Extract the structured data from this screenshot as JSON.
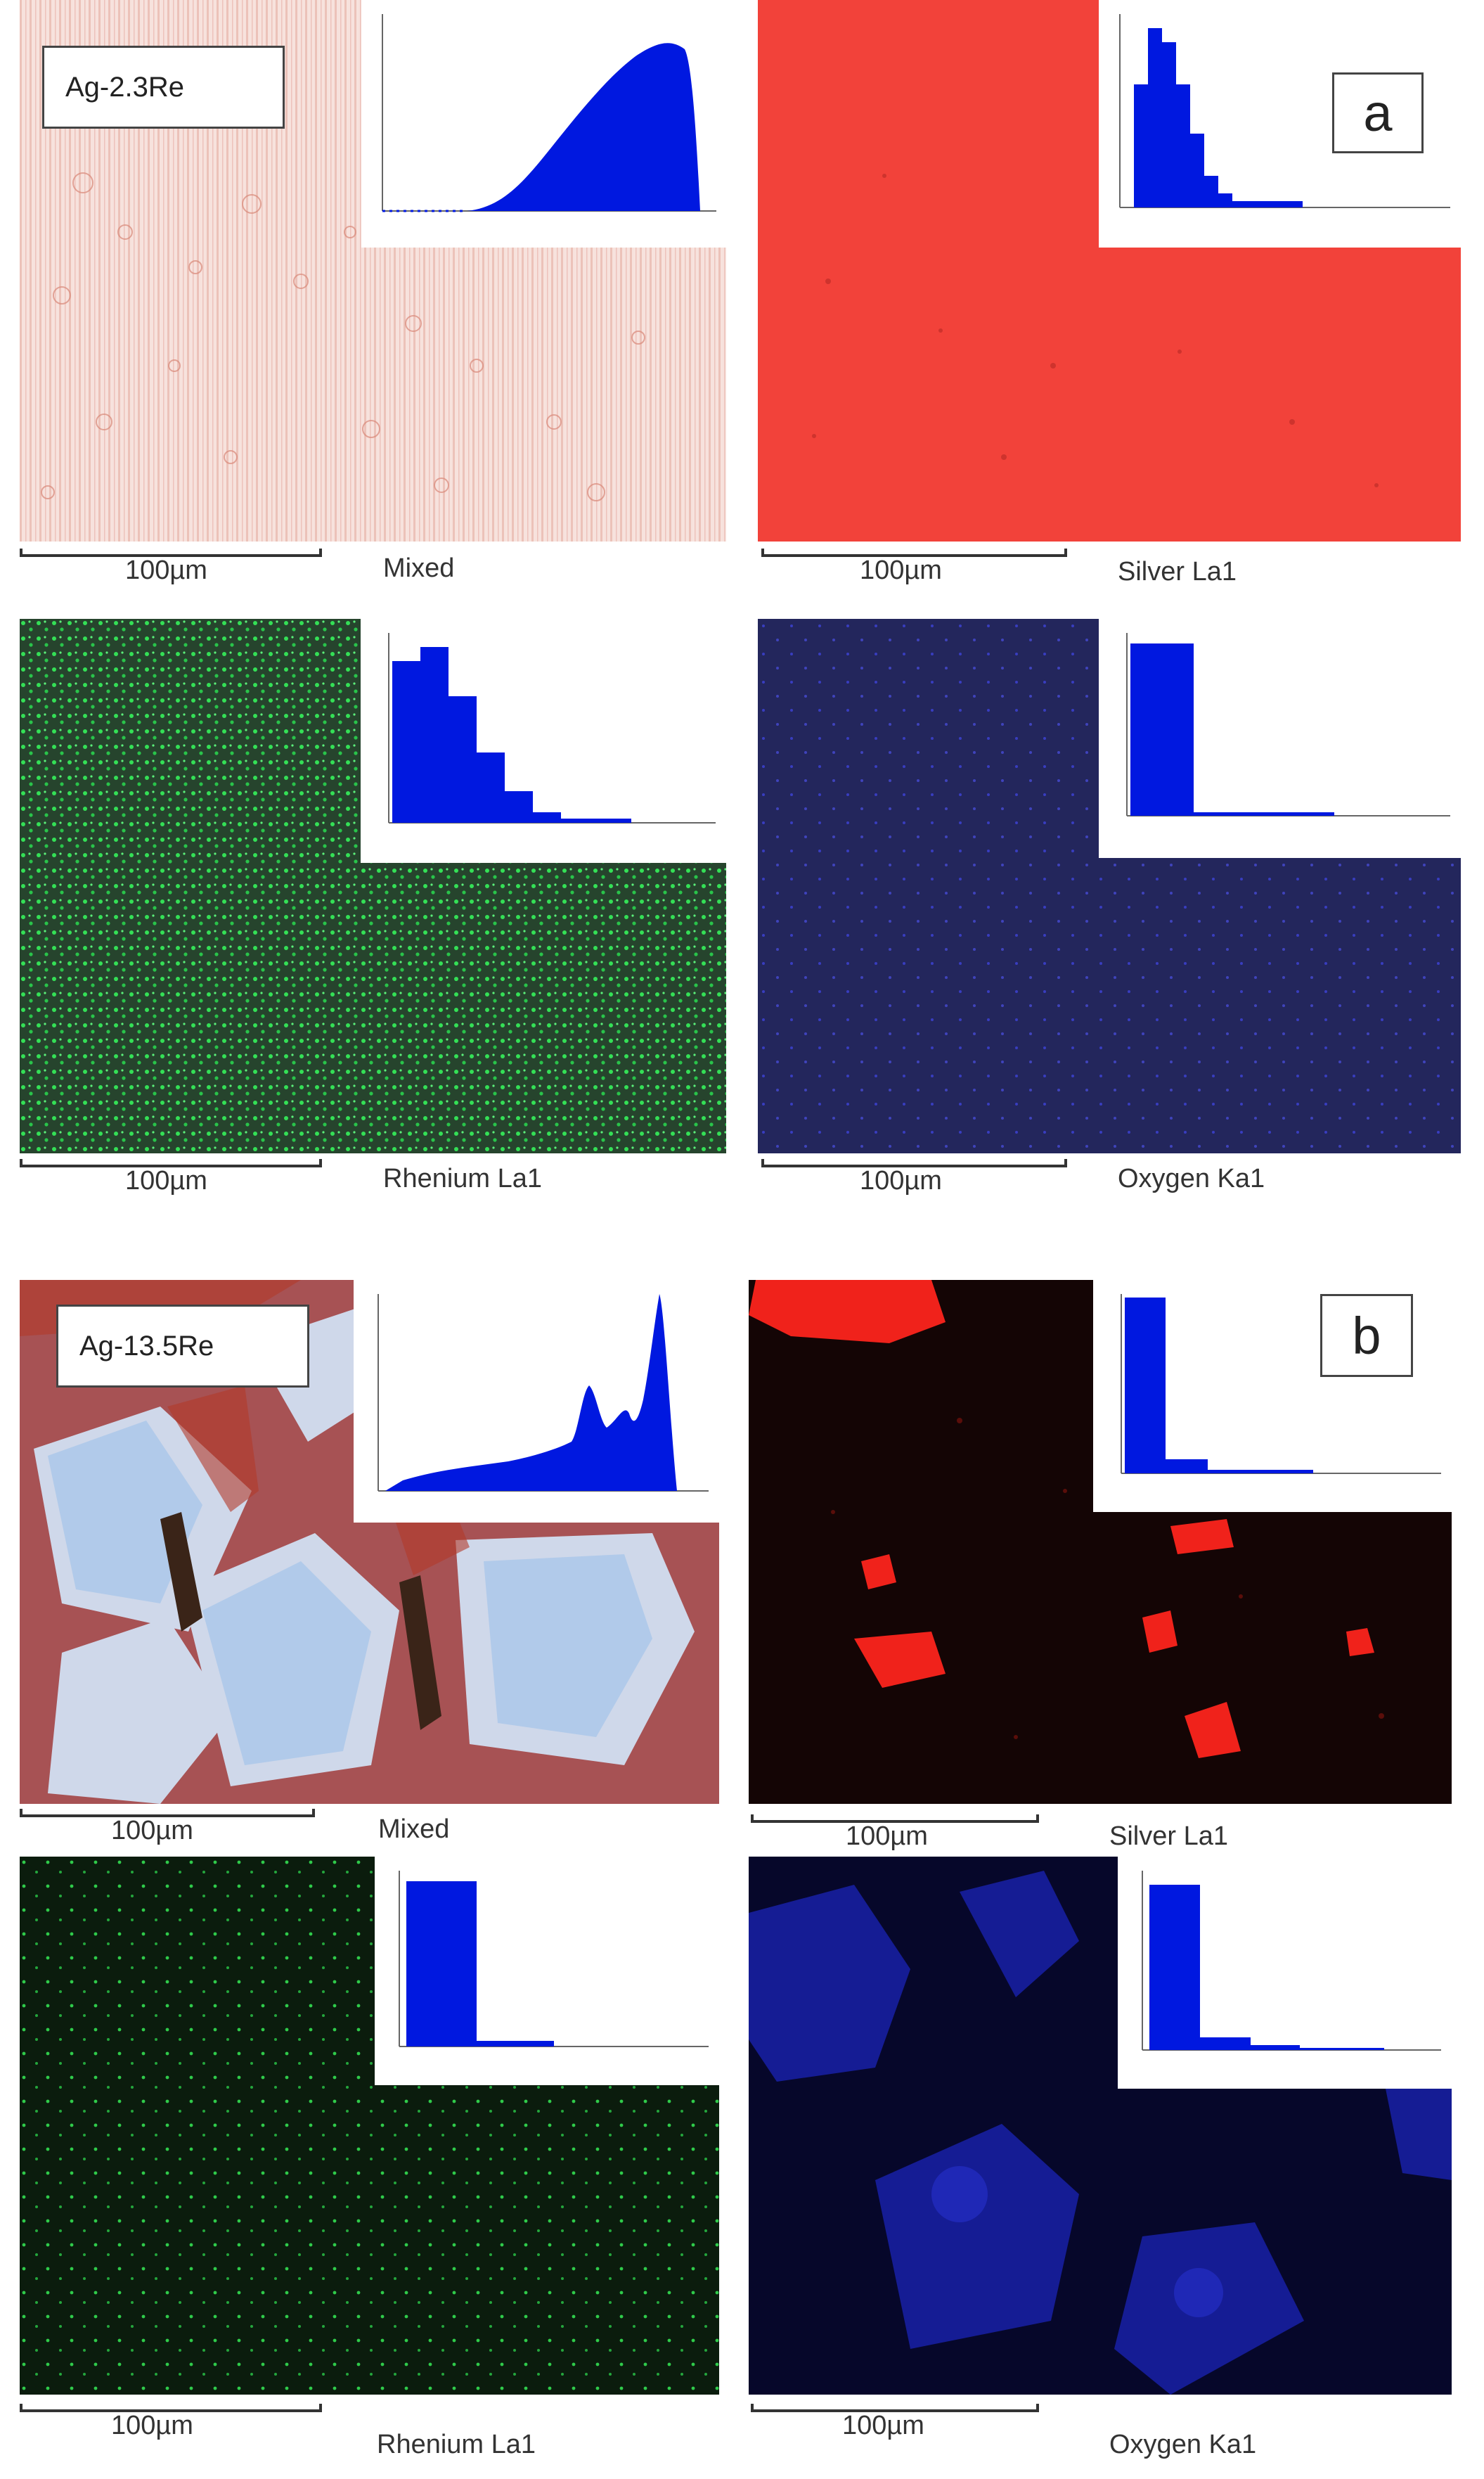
{
  "figure": {
    "a": {
      "letter": "a",
      "sample": "Ag-2.3Re",
      "panels": [
        {
          "scale": "100µm",
          "caption": "Mixed"
        },
        {
          "scale": "100µm",
          "caption": "Silver La1"
        },
        {
          "scale": "100µm",
          "caption": "Rhenium La1"
        },
        {
          "scale": "100µm",
          "caption": "Oxygen Ka1"
        }
      ]
    },
    "b": {
      "letter": "b",
      "sample": "Ag-13.5Re",
      "panels": [
        {
          "scale": "100µm",
          "caption": "Mixed"
        },
        {
          "scale": "100µm",
          "caption": "Silver La1"
        },
        {
          "scale": "100µm",
          "caption": "Rhenium La1"
        },
        {
          "scale": "100µm",
          "caption": "Oxygen Ka1"
        }
      ]
    }
  },
  "colors": {
    "histogram": "#0018e0",
    "silver_a": "#f2423a",
    "rhenium": "#27d44a",
    "oxygen": "#3a3ed8",
    "mixed_a": "#f6dcd6"
  }
}
